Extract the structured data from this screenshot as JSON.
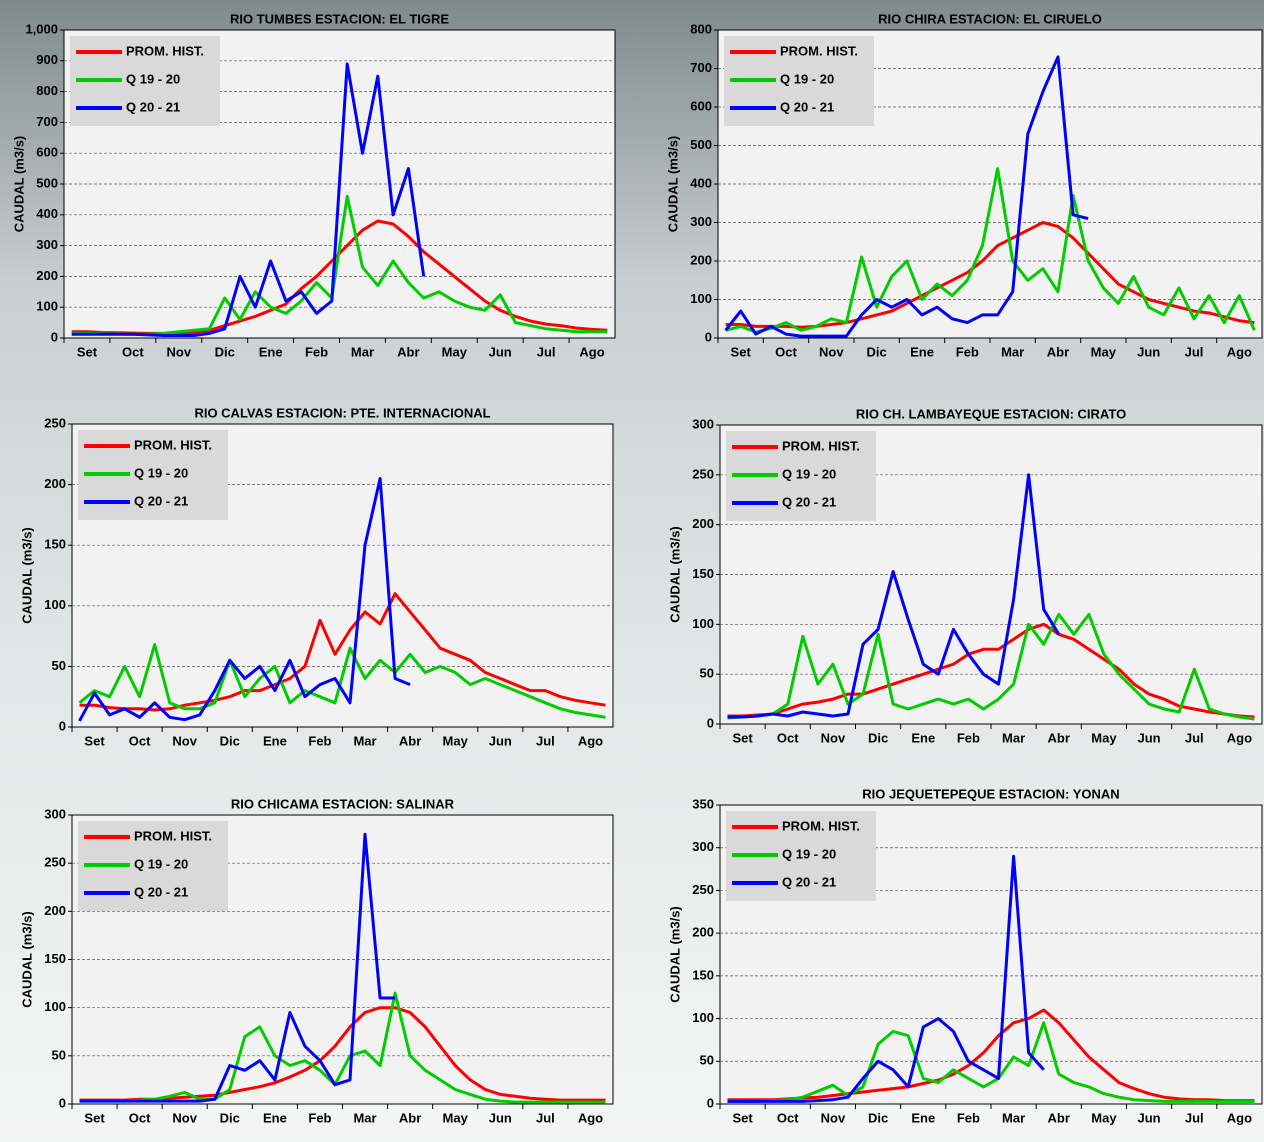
{
  "chart_data": [
    {
      "type": "line",
      "title": "RIO TUMBES  ESTACION:  EL TIGRE",
      "y_label": "CAUDAL (m3/s)",
      "categories": [
        null,
        "Set",
        null,
        null,
        "Oct",
        null,
        null,
        "Nov",
        null,
        null,
        "Dic",
        null,
        null,
        "Ene",
        null,
        null,
        "Feb",
        null,
        null,
        "Mar",
        null,
        null,
        "Abr",
        null,
        null,
        "May",
        null,
        null,
        "Jun",
        null,
        null,
        "Jul",
        null,
        null,
        "Ago",
        null
      ],
      "ylim": [
        0,
        1000
      ],
      "yticks": [
        0,
        100,
        200,
        300,
        400,
        500,
        600,
        700,
        800,
        900,
        {
          "value": 1000,
          "label": "1,000"
        }
      ],
      "grid": true,
      "series": [
        {
          "name": "PROM. HIST.",
          "color": "#ff0000",
          "values": [
            20,
            20,
            18,
            17,
            16,
            15,
            15,
            15,
            18,
            25,
            40,
            55,
            70,
            90,
            110,
            160,
            200,
            250,
            300,
            350,
            380,
            370,
            330,
            280,
            240,
            200,
            160,
            120,
            90,
            70,
            55,
            45,
            40,
            32,
            28,
            25
          ]
        },
        {
          "name": "Q 19 - 20",
          "color": "#00cc00",
          "values": [
            15,
            15,
            14,
            13,
            12,
            12,
            15,
            20,
            25,
            30,
            130,
            60,
            150,
            100,
            80,
            120,
            180,
            130,
            460,
            230,
            170,
            250,
            180,
            130,
            150,
            120,
            100,
            90,
            140,
            50,
            40,
            30,
            25,
            20,
            20,
            20
          ]
        },
        {
          "name": "Q 20 - 21",
          "color": "#0000ff",
          "values": [
            12,
            12,
            12,
            12,
            12,
            10,
            8,
            8,
            8,
            15,
            30,
            200,
            100,
            250,
            120,
            150,
            80,
            120,
            890,
            600,
            850,
            400,
            550,
            200,
            null,
            null,
            null,
            null,
            null,
            null,
            null,
            null,
            null,
            null,
            null,
            null
          ]
        }
      ]
    },
    {
      "type": "line",
      "title": "RIO  CHIRA  ESTACION:  EL CIRUELO",
      "y_label": "CAUDAL  (m3/s)",
      "categories": [
        null,
        "Set",
        null,
        null,
        "Oct",
        null,
        null,
        "Nov",
        null,
        null,
        "Dic",
        null,
        null,
        "Ene",
        null,
        null,
        "Feb",
        null,
        null,
        "Mar",
        null,
        null,
        "Abr",
        null,
        null,
        "May",
        null,
        null,
        "Jun",
        null,
        null,
        "Jul",
        null,
        null,
        "Ago",
        null
      ],
      "ylim": [
        0,
        800
      ],
      "yticks": [
        0,
        100,
        200,
        300,
        400,
        500,
        600,
        700,
        800
      ],
      "grid": true,
      "series": [
        {
          "name": "PROM. HIST.",
          "color": "#ff0000",
          "values": [
            35,
            35,
            30,
            30,
            30,
            28,
            30,
            35,
            40,
            50,
            60,
            70,
            90,
            110,
            130,
            150,
            170,
            200,
            240,
            260,
            280,
            300,
            290,
            260,
            220,
            180,
            140,
            120,
            100,
            90,
            80,
            70,
            65,
            55,
            45,
            40
          ]
        },
        {
          "name": "Q 19 - 20",
          "color": "#00cc00",
          "values": [
            20,
            30,
            15,
            25,
            40,
            20,
            30,
            50,
            40,
            210,
            80,
            160,
            200,
            100,
            140,
            110,
            150,
            240,
            440,
            200,
            150,
            180,
            120,
            370,
            200,
            130,
            90,
            160,
            80,
            60,
            130,
            50,
            110,
            40,
            110,
            20
          ]
        },
        {
          "name": "Q 20 - 21",
          "color": "#0000ff",
          "values": [
            20,
            70,
            10,
            30,
            10,
            5,
            5,
            5,
            5,
            60,
            100,
            80,
            100,
            60,
            80,
            50,
            40,
            60,
            60,
            120,
            530,
            640,
            730,
            320,
            310,
            null,
            null,
            null,
            null,
            null,
            null,
            null,
            null,
            null,
            null,
            null
          ]
        }
      ]
    },
    {
      "type": "line",
      "title": "RIO CALVAS ESTACION:  PTE. INTERNACIONAL",
      "y_label": "CAUDAL (m3/s)",
      "categories": [
        null,
        "Set",
        null,
        null,
        "Oct",
        null,
        null,
        "Nov",
        null,
        null,
        "Dic",
        null,
        null,
        "Ene",
        null,
        null,
        "Feb",
        null,
        null,
        "Mar",
        null,
        null,
        "Abr",
        null,
        null,
        "May",
        null,
        null,
        "Jun",
        null,
        null,
        "Jul",
        null,
        null,
        "Ago",
        null
      ],
      "ylim": [
        0,
        250
      ],
      "yticks": [
        0,
        50,
        100,
        150,
        200,
        250
      ],
      "grid": true,
      "series": [
        {
          "name": "PROM. HIST.",
          "color": "#ff0000",
          "values": [
            18,
            18,
            16,
            15,
            15,
            14,
            15,
            18,
            20,
            22,
            25,
            30,
            30,
            35,
            40,
            50,
            88,
            60,
            80,
            95,
            85,
            110,
            95,
            80,
            65,
            60,
            55,
            45,
            40,
            35,
            30,
            30,
            25,
            22,
            20,
            18
          ]
        },
        {
          "name": "Q 19 - 20",
          "color": "#00cc00",
          "values": [
            20,
            30,
            25,
            50,
            25,
            68,
            20,
            15,
            15,
            20,
            55,
            25,
            40,
            50,
            20,
            30,
            25,
            20,
            65,
            40,
            55,
            45,
            60,
            45,
            50,
            45,
            35,
            40,
            35,
            30,
            25,
            20,
            15,
            12,
            10,
            8
          ]
        },
        {
          "name": "Q 20 - 21",
          "color": "#0000ff",
          "values": [
            5,
            28,
            10,
            15,
            8,
            20,
            8,
            6,
            10,
            30,
            55,
            40,
            50,
            30,
            55,
            25,
            35,
            40,
            20,
            150,
            205,
            40,
            35,
            null,
            null,
            null,
            null,
            null,
            null,
            null,
            null,
            null,
            null,
            null,
            null,
            null
          ]
        }
      ]
    },
    {
      "type": "line",
      "title": "RIO  CH. LAMBAYEQUE  ESTACION:  CIRATO",
      "y_label": "CAUDAL  (m3/s)",
      "categories": [
        null,
        "Set",
        null,
        null,
        "Oct",
        null,
        null,
        "Nov",
        null,
        null,
        "Dic",
        null,
        null,
        "Ene",
        null,
        null,
        "Feb",
        null,
        null,
        "Mar",
        null,
        null,
        "Abr",
        null,
        null,
        "May",
        null,
        null,
        "Jun",
        null,
        null,
        "Jul",
        null,
        null,
        "Ago",
        null
      ],
      "ylim": [
        0,
        300
      ],
      "yticks": [
        0,
        50,
        100,
        150,
        200,
        250,
        300
      ],
      "grid": true,
      "series": [
        {
          "name": "PROM. HIST.",
          "color": "#ff0000",
          "values": [
            8,
            8,
            9,
            10,
            15,
            20,
            22,
            25,
            30,
            30,
            35,
            40,
            45,
            50,
            55,
            60,
            70,
            75,
            75,
            85,
            95,
            100,
            90,
            85,
            75,
            65,
            55,
            40,
            30,
            25,
            18,
            15,
            12,
            10,
            8,
            7
          ]
        },
        {
          "name": "Q 19 - 20",
          "color": "#00cc00",
          "values": [
            6,
            7,
            8,
            10,
            20,
            88,
            40,
            60,
            20,
            30,
            90,
            20,
            15,
            20,
            25,
            20,
            25,
            15,
            25,
            40,
            100,
            80,
            110,
            90,
            110,
            70,
            50,
            35,
            20,
            15,
            12,
            55,
            15,
            10,
            7,
            5
          ]
        },
        {
          "name": "Q 20 - 21",
          "color": "#0000ff",
          "values": [
            7,
            7,
            8,
            10,
            8,
            12,
            10,
            8,
            10,
            80,
            95,
            153,
            105,
            60,
            50,
            95,
            70,
            50,
            40,
            125,
            250,
            115,
            90,
            null,
            null,
            null,
            null,
            null,
            null,
            null,
            null,
            null,
            null,
            null,
            null,
            null
          ]
        }
      ]
    },
    {
      "type": "line",
      "title": "RIO  CHICAMA  ESTACION:  SALINAR",
      "y_label": "CAUDAL (m3/s)",
      "categories": [
        null,
        "Set",
        null,
        null,
        "Oct",
        null,
        null,
        "Nov",
        null,
        null,
        "Dic",
        null,
        null,
        "Ene",
        null,
        null,
        "Feb",
        null,
        null,
        "Mar",
        null,
        null,
        "Abr",
        null,
        null,
        "May",
        null,
        null,
        "Jun",
        null,
        null,
        "Jul",
        null,
        null,
        "Ago",
        null
      ],
      "ylim": [
        0,
        300
      ],
      "yticks": [
        0,
        50,
        100,
        150,
        200,
        250,
        300
      ],
      "grid": true,
      "series": [
        {
          "name": "PROM. HIST.",
          "color": "#ff0000",
          "values": [
            4,
            4,
            4,
            4,
            5,
            5,
            6,
            7,
            8,
            9,
            12,
            15,
            18,
            22,
            28,
            35,
            45,
            60,
            80,
            95,
            100,
            100,
            95,
            80,
            60,
            40,
            25,
            15,
            10,
            8,
            6,
            5,
            4,
            4,
            4,
            4
          ]
        },
        {
          "name": "Q 19 - 20",
          "color": "#00cc00",
          "values": [
            3,
            3,
            3,
            3,
            4,
            5,
            8,
            12,
            5,
            5,
            15,
            70,
            80,
            50,
            40,
            45,
            35,
            20,
            50,
            55,
            40,
            115,
            50,
            35,
            25,
            15,
            10,
            5,
            3,
            2,
            2,
            2,
            2,
            2,
            2,
            2
          ]
        },
        {
          "name": "Q 20 - 21",
          "color": "#0000ff",
          "values": [
            3,
            3,
            3,
            3,
            3,
            3,
            3,
            3,
            3,
            5,
            40,
            35,
            45,
            25,
            95,
            60,
            45,
            20,
            25,
            280,
            110,
            110,
            null,
            null,
            null,
            null,
            null,
            null,
            null,
            null,
            null,
            null,
            null,
            null,
            null,
            null
          ]
        }
      ]
    },
    {
      "type": "line",
      "title": "RIO JEQUETEPEQUE  ESTACION: YONAN",
      "y_label": "CAUDAL (m3/s)",
      "categories": [
        null,
        "Set",
        null,
        null,
        "Oct",
        null,
        null,
        "Nov",
        null,
        null,
        "Dic",
        null,
        null,
        "Ene",
        null,
        null,
        "Feb",
        null,
        null,
        "Mar",
        null,
        null,
        "Abr",
        null,
        null,
        "May",
        null,
        null,
        "Jun",
        null,
        null,
        "Jul",
        null,
        null,
        "Ago",
        null
      ],
      "ylim": [
        0,
        350
      ],
      "yticks": [
        0,
        50,
        100,
        150,
        200,
        250,
        300,
        350
      ],
      "grid": true,
      "series": [
        {
          "name": "PROM. HIST.",
          "color": "#ff0000",
          "values": [
            5,
            5,
            5,
            5,
            6,
            7,
            8,
            10,
            12,
            14,
            16,
            18,
            20,
            24,
            28,
            35,
            45,
            60,
            80,
            95,
            100,
            110,
            95,
            75,
            55,
            40,
            25,
            18,
            12,
            8,
            6,
            5,
            5,
            4,
            4,
            4
          ]
        },
        {
          "name": "Q 19 - 20",
          "color": "#00cc00",
          "values": [
            3,
            3,
            3,
            4,
            5,
            8,
            15,
            22,
            10,
            20,
            70,
            85,
            80,
            30,
            25,
            40,
            30,
            20,
            30,
            55,
            45,
            95,
            35,
            25,
            20,
            12,
            8,
            5,
            4,
            3,
            3,
            3,
            3,
            3,
            3,
            3
          ]
        },
        {
          "name": "Q 20 - 21",
          "color": "#0000ff",
          "values": [
            3,
            3,
            3,
            3,
            3,
            3,
            4,
            5,
            8,
            30,
            50,
            40,
            20,
            90,
            100,
            85,
            50,
            40,
            30,
            290,
            60,
            40,
            null,
            null,
            null,
            null,
            null,
            null,
            null,
            null,
            null,
            null,
            null,
            null,
            null,
            null
          ]
        }
      ]
    }
  ]
}
